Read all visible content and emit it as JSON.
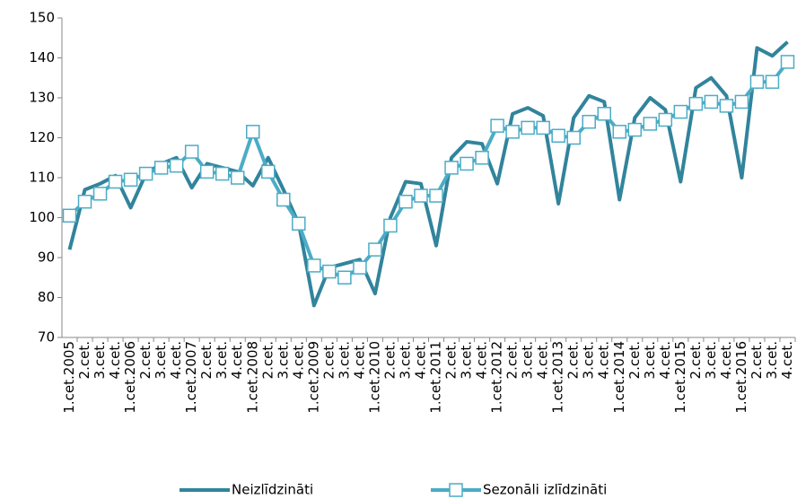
{
  "chart_data": {
    "type": "line",
    "categories": [
      "1.cet.2005",
      "2.cet.",
      "3.cet.",
      "4.cet.",
      "1.cet.2006",
      "2.cet.",
      "3.cet.",
      "4.cet.",
      "1.cet.2007",
      "2.cet.",
      "3.cet.",
      "4.cet.",
      "1.cet.2008",
      "2.cet.",
      "3.cet.",
      "4.cet.",
      "1.cet.2009",
      "2.cet.",
      "3.cet.",
      "4.cet.",
      "1.cet.2010",
      "2.cet.",
      "3.cet.",
      "4.cet.",
      "1.cet.2011",
      "2.cet.",
      "3.cet.",
      "4.cet.",
      "1.cet.2012",
      "2.cet.",
      "3.cet.",
      "4.cet.",
      "1.cet.2013",
      "2.cet.",
      "3.cet.",
      "4.cet.",
      "1.cet.2014",
      "2.cet.",
      "3.cet.",
      "4.cet.",
      "1.cet.2015",
      "2.cet.",
      "3.cet.",
      "4.cet.",
      "1.cet.2016",
      "2.cet.",
      "3.cet.",
      "4.cet."
    ],
    "series": [
      {
        "name": "Neizlīdzināti",
        "color": "#31849b",
        "marker": false,
        "values": [
          92,
          107,
          108.5,
          110.5,
          102.5,
          111,
          113.5,
          115,
          107.5,
          113.5,
          112.5,
          111.5,
          108,
          115,
          107,
          98.5,
          78,
          87.5,
          88.5,
          89.5,
          81,
          100,
          109,
          108.5,
          93,
          115,
          119,
          118.5,
          108.5,
          126,
          127.5,
          125.5,
          103.5,
          125,
          130.5,
          129,
          104.5,
          125,
          130,
          127,
          109,
          132.5,
          135,
          130.5,
          110,
          142.5,
          140.5,
          144
        ]
      },
      {
        "name": "Sezonāli izlīdzināti",
        "color": "#4bacc6",
        "marker": true,
        "values": [
          100.5,
          104,
          106,
          109,
          109.5,
          111,
          112.5,
          113,
          116.5,
          111.5,
          111,
          110,
          121.5,
          111.5,
          104.5,
          98.5,
          88,
          86.5,
          85,
          87.5,
          92,
          98,
          104,
          105.5,
          105.5,
          112.5,
          113.5,
          115,
          123,
          121.5,
          122.5,
          122.5,
          120.5,
          120,
          124,
          126,
          121.5,
          122,
          123.5,
          124.5,
          126.5,
          128.5,
          129,
          128,
          129,
          134,
          134,
          139
        ]
      }
    ],
    "ylim": [
      70,
      150
    ],
    "yticks": [
      70,
      80,
      90,
      100,
      110,
      120,
      130,
      140,
      150
    ],
    "grid": false
  }
}
